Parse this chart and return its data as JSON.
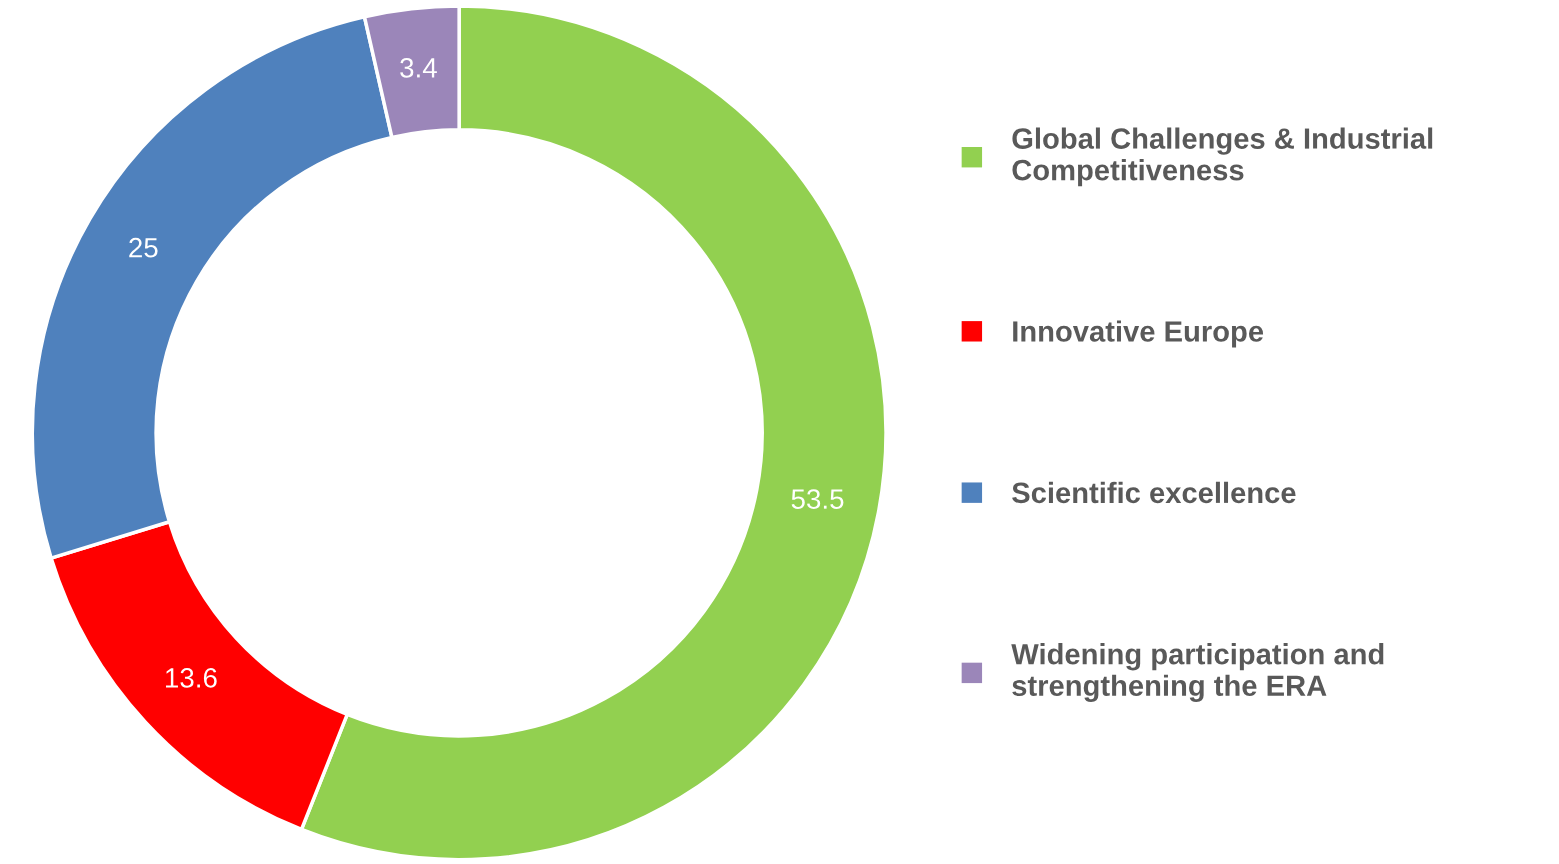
{
  "chart_data": {
    "type": "donut",
    "categories": [
      "Global Challenges & Industrial Competitiveness",
      "Innovative Europe",
      "Scientific excellence",
      "Widening participation and strengthening the ERA"
    ],
    "values": [
      53.5,
      13.6,
      25,
      3.4
    ],
    "colors": [
      "#92d050",
      "#ff0000",
      "#4f81bd",
      "#9b86b9"
    ],
    "data_labels": true,
    "legend": "right"
  }
}
